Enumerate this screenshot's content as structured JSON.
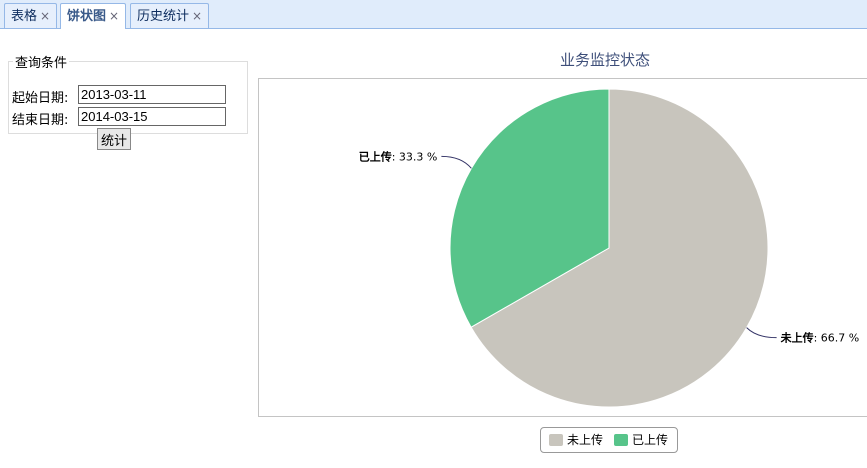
{
  "tabs": [
    {
      "label": "表格",
      "active": false
    },
    {
      "label": "饼状图",
      "active": true
    },
    {
      "label": "历史统计",
      "active": false
    }
  ],
  "tab_close": "×",
  "query": {
    "legend": "查询条件",
    "start_label": "起始日期:",
    "start_value": "2013-03-11",
    "end_label": "结束日期:",
    "end_value": "2014-03-15",
    "submit": "统计"
  },
  "chart_data": {
    "type": "pie",
    "title": "业务监控状态",
    "slices": [
      {
        "name": "未上传",
        "value": 66.7,
        "label": "66.7 %",
        "color": "#c8c5bd"
      },
      {
        "name": "已上传",
        "value": 33.3,
        "label": "33.3 %",
        "color": "#57c48a"
      }
    ],
    "legend": "bottom"
  }
}
